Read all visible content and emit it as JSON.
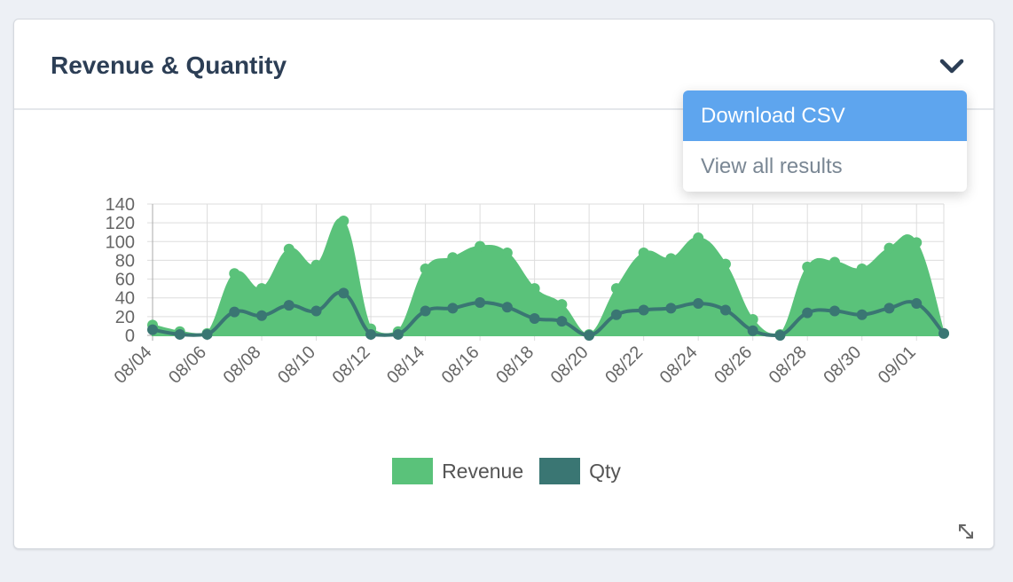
{
  "card": {
    "title": "Revenue & Quantity",
    "menu": [
      "Download CSV",
      "View all results"
    ]
  },
  "icons": {
    "toggle": "chevron-down-icon",
    "expand": "expand-icon"
  },
  "colors": {
    "revenue": "#5ac27a",
    "qty": "#3a7673",
    "menu_active": "#5ea5ee"
  },
  "chart_data": {
    "type": "area",
    "title": "",
    "xlabel": "",
    "ylabel": "",
    "ylim": [
      0,
      140
    ],
    "yticks": [
      0,
      20,
      40,
      60,
      80,
      100,
      120,
      140
    ],
    "grid": true,
    "legend_position": "bottom",
    "categories": [
      "08/04",
      "08/05",
      "08/06",
      "08/07",
      "08/08",
      "08/09",
      "08/10",
      "08/11",
      "08/12",
      "08/13",
      "08/14",
      "08/15",
      "08/16",
      "08/17",
      "08/18",
      "08/19",
      "08/20",
      "08/21",
      "08/22",
      "08/23",
      "08/24",
      "08/25",
      "08/26",
      "08/27",
      "08/28",
      "08/29",
      "08/30",
      "08/31",
      "09/01",
      "09/02"
    ],
    "tick_labels": [
      "08/04",
      "08/06",
      "08/08",
      "08/10",
      "08/12",
      "08/14",
      "08/16",
      "08/18",
      "08/20",
      "08/22",
      "08/24",
      "08/26",
      "08/28",
      "08/30",
      "09/01"
    ],
    "series": [
      {
        "name": "Revenue",
        "kind": "area",
        "values": [
          11,
          4,
          2,
          66,
          50,
          92,
          75,
          122,
          7,
          4,
          71,
          83,
          95,
          88,
          50,
          33,
          1,
          50,
          88,
          82,
          104,
          76,
          17,
          1,
          73,
          78,
          71,
          93,
          99,
          2
        ]
      },
      {
        "name": "Qty",
        "kind": "line",
        "values": [
          6,
          1,
          1,
          25,
          21,
          32,
          26,
          45,
          1,
          1,
          26,
          29,
          35,
          30,
          18,
          15,
          0,
          22,
          27,
          29,
          34,
          27,
          5,
          0,
          24,
          26,
          22,
          29,
          34,
          2
        ]
      }
    ]
  }
}
